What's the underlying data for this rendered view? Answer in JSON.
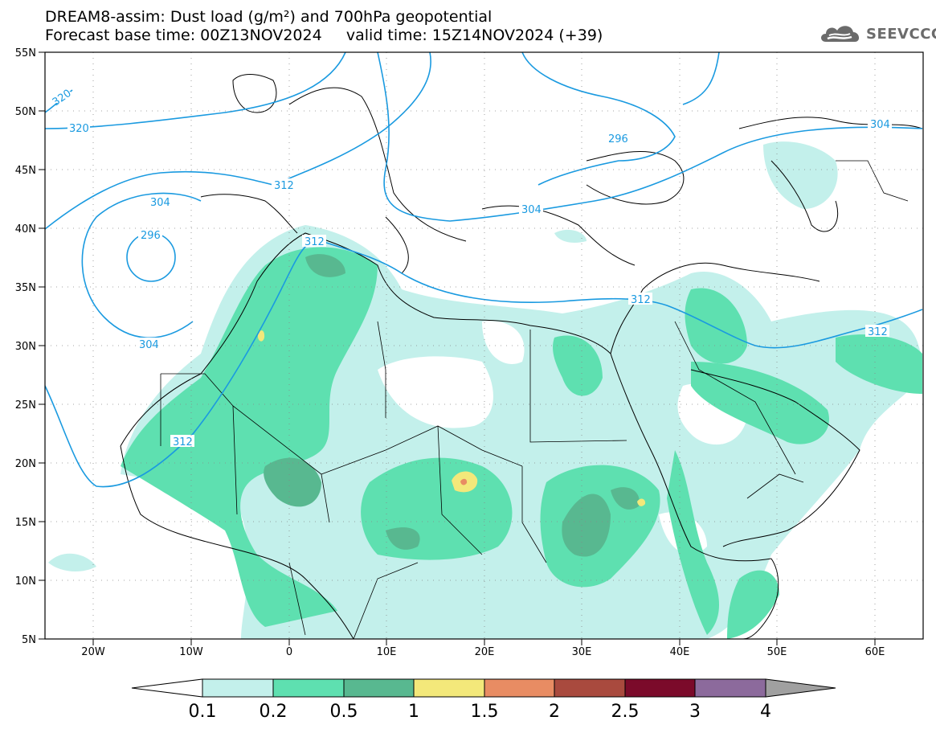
{
  "header": {
    "title_line1": "DREAM8-assim: Dust load (g/m²) and 700hPa geopotential",
    "title_line2": "Forecast base time: 00Z13NOV2024     valid time: 15Z14NOV2024 (+39)",
    "logo_text": "SEEVCCC",
    "logo_icon": "cloud-logo-icon"
  },
  "map": {
    "lon_ticks": [
      "20W",
      "10W",
      "0",
      "10E",
      "20E",
      "30E",
      "40E",
      "50E",
      "60E"
    ],
    "lat_ticks": [
      "55N",
      "50N",
      "45N",
      "40N",
      "35N",
      "30N",
      "25N",
      "20N",
      "15N",
      "10N",
      "5N"
    ],
    "contour_labels": [
      "320",
      "320",
      "312",
      "304",
      "296",
      "304",
      "312",
      "296",
      "304",
      "312",
      "304",
      "312",
      "312"
    ]
  },
  "colorbar": {
    "ticks": [
      "0.1",
      "0.2",
      "0.5",
      "1",
      "1.5",
      "2",
      "2.5",
      "3",
      "4"
    ],
    "colors": [
      "#c3f0eb",
      "#5ee0b0",
      "#58b890",
      "#f3e87a",
      "#e88c63",
      "#a94a3e",
      "#7b0a2a",
      "#8c6a9c",
      "#a0a0a0"
    ]
  },
  "colors": {
    "contour": "#1a9ae0",
    "dust_low": "#c3f0eb",
    "dust_mid": "#5ee0b0",
    "dust_high": "#58b890"
  }
}
